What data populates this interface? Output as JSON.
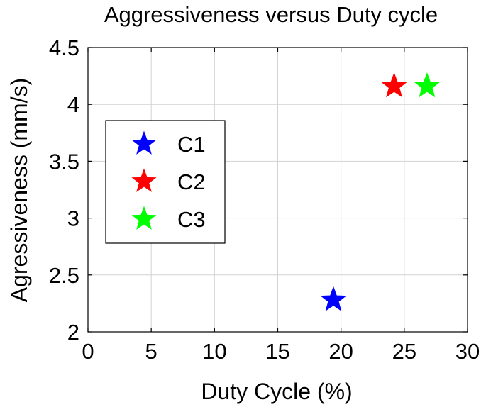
{
  "chart_data": {
    "type": "scatter",
    "title": "Aggressiveness versus Duty cycle",
    "xlabel": "Duty Cycle (%)",
    "ylabel": "Agressiveness (mm/s)",
    "xlim": [
      0,
      30
    ],
    "ylim": [
      2,
      4.5
    ],
    "xticks": [
      0,
      5,
      10,
      15,
      20,
      25,
      30
    ],
    "yticks": [
      2,
      2.5,
      3,
      3.5,
      4,
      4.5
    ],
    "xtick_labels": [
      "0",
      "5",
      "10",
      "15",
      "20",
      "25",
      "30"
    ],
    "ytick_labels": [
      "2",
      "2.5",
      "3",
      "3.5",
      "4",
      "4.5"
    ],
    "grid": true,
    "marker": "star",
    "legend_position": "middle-left",
    "series": [
      {
        "name": "C1",
        "color": "#0000ff",
        "points": [
          {
            "x": 19.4,
            "y": 2.28
          }
        ]
      },
      {
        "name": "C2",
        "color": "#ff0000",
        "points": [
          {
            "x": 24.2,
            "y": 4.16
          }
        ]
      },
      {
        "name": "C3",
        "color": "#00ff00",
        "points": [
          {
            "x": 26.8,
            "y": 4.16
          }
        ]
      }
    ]
  }
}
